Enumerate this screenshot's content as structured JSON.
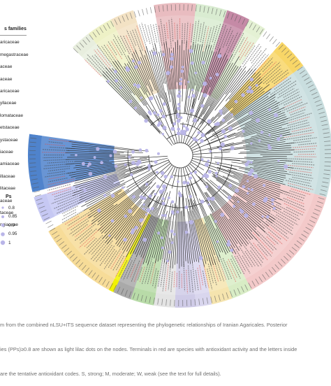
{
  "legend": {
    "families_title": "s families",
    "families": [
      {
        "name": "aricaceae"
      },
      {
        "name": "megastraceae"
      },
      {
        "name": "aceae"
      },
      {
        "name": "aceae"
      },
      {
        "name": "aricaceae"
      },
      {
        "name": "yllaceae"
      },
      {
        "name": "lomataceae"
      },
      {
        "name": "etstaceae"
      },
      {
        "name": "ystaceae"
      },
      {
        "name": "iaceae"
      },
      {
        "name": "amiaceae"
      },
      {
        "name": "illaceae"
      },
      {
        "name": "litaceae"
      },
      {
        "name": "aceae"
      },
      {
        "name": "taceae"
      },
      {
        "name": "ngiaceae"
      }
    ],
    "pp_title": "Ps",
    "pp_values": [
      "0.8",
      "0.85",
      "0.9",
      "0.95",
      "1"
    ]
  },
  "caption": {
    "lines": [
      "m from the combined nLSU+ITS sequence dataset representing the phylogenetic relationships of Iranian Agaricales. Posterior",
      "ies (PPs)≥0.8 are shown as light lilac dots on the nodes. Terminals in red are species with antioxidant activity and the letters inside",
      "are the tentative antioxidant codes. S, strong; M, moderate; W, weak (see the text for full details)."
    ]
  },
  "colors": {
    "terminal_default": "#444444",
    "terminal_antioxidant": "#d9534f",
    "pp_dot": "#b9b5e8",
    "branch": "#333333"
  }
}
